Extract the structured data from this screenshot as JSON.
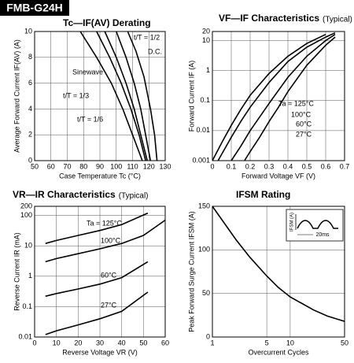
{
  "title": "FMB-G24H",
  "chart_data": [
    {
      "type": "line",
      "title": "Tc—IF(AV) Derating",
      "xlabel": "Case Temperature  Tc (°C)",
      "ylabel": "Average Forward Current  IF(AV) (A)",
      "xlim": [
        50,
        130
      ],
      "xticks": [
        50,
        60,
        70,
        80,
        90,
        100,
        110,
        120,
        130
      ],
      "ylim": [
        0,
        10
      ],
      "yticks": [
        0,
        2,
        4,
        6,
        8,
        10
      ],
      "grid": true,
      "series": [
        {
          "name": "t/T = 1/2",
          "color": "#000000",
          "x": [
            100,
            106,
            111,
            115,
            118,
            121
          ],
          "values": [
            10,
            8,
            6,
            4,
            2,
            0
          ]
        },
        {
          "name": "D.C.",
          "color": "#000000",
          "x": [
            107,
            112,
            117,
            121,
            123.5,
            125
          ],
          "values": [
            10,
            8.5,
            6.5,
            4,
            2,
            0
          ]
        },
        {
          "name": "Sinewave",
          "color": "#000000",
          "x": [
            93,
            100,
            106,
            111,
            115,
            119
          ],
          "values": [
            10,
            8,
            6,
            4,
            2,
            0
          ]
        },
        {
          "name": "t/T = 1/3",
          "color": "#000000",
          "x": [
            88,
            96,
            103,
            109,
            114,
            118
          ],
          "values": [
            10,
            8,
            6,
            4,
            2,
            0
          ]
        },
        {
          "name": "t/T = 1/6",
          "color": "#000000",
          "x": [
            78,
            88,
            97,
            104,
            110,
            116
          ],
          "values": [
            10,
            8,
            6,
            4,
            2,
            0
          ]
        }
      ]
    },
    {
      "type": "line",
      "title": "VF—IF Characteristics",
      "subtitle": "(Typical)",
      "xlabel": "Forward Voltage  VF (V)",
      "ylabel": "Forward Current  IF (A)",
      "xlim": [
        0,
        0.7
      ],
      "xticks": [
        0,
        0.1,
        0.2,
        0.3,
        0.4,
        0.5,
        0.6,
        0.7
      ],
      "ylim": [
        0.001,
        20
      ],
      "yticks": [
        0.001,
        0.01,
        0.1,
        1,
        10,
        20
      ],
      "yscale": "log",
      "grid": true,
      "series": [
        {
          "name": "Ta = 125°C",
          "color": "#000000",
          "x": [
            0,
            0.05,
            0.1,
            0.15,
            0.2,
            0.3,
            0.4,
            0.5,
            0.6
          ],
          "values": [
            0.001,
            0.004,
            0.015,
            0.05,
            0.15,
            0.8,
            3,
            8,
            16
          ]
        },
        {
          "name": "100°C",
          "color": "#000000",
          "x": [
            0.03,
            0.1,
            0.15,
            0.2,
            0.3,
            0.4,
            0.5,
            0.6,
            0.65
          ],
          "values": [
            0.001,
            0.006,
            0.02,
            0.06,
            0.4,
            2,
            6,
            13,
            18
          ]
        },
        {
          "name": "60°C",
          "color": "#000000",
          "x": [
            0.1,
            0.15,
            0.2,
            0.3,
            0.4,
            0.5,
            0.6,
            0.65
          ],
          "values": [
            0.001,
            0.003,
            0.01,
            0.08,
            0.6,
            3,
            10,
            16
          ]
        },
        {
          "name": "27°C",
          "color": "#000000",
          "x": [
            0.17,
            0.2,
            0.25,
            0.3,
            0.35,
            0.4,
            0.5,
            0.6,
            0.65
          ],
          "values": [
            0.001,
            0.002,
            0.006,
            0.02,
            0.06,
            0.2,
            1.5,
            7,
            13
          ]
        }
      ]
    },
    {
      "type": "line",
      "title": "VR—IR Characteristics",
      "subtitle": "(Typical)",
      "xlabel": "Reverse Voltage  VR (V)",
      "ylabel": "Reverse Current  IR (mA)",
      "xlim": [
        0,
        60
      ],
      "xticks": [
        0,
        10,
        20,
        30,
        40,
        50,
        60
      ],
      "ylim": [
        0.01,
        200
      ],
      "yticks": [
        0.01,
        0.1,
        1,
        10,
        100,
        200
      ],
      "yscale": "log",
      "grid": true,
      "series": [
        {
          "name": "Ta = 125°C",
          "color": "#000000",
          "x": [
            5,
            10,
            20,
            30,
            40,
            52
          ],
          "values": [
            12,
            15,
            22,
            32,
            50,
            120
          ]
        },
        {
          "name": "100°C",
          "color": "#000000",
          "x": [
            5,
            10,
            20,
            30,
            40,
            50,
            60
          ],
          "values": [
            3,
            3.8,
            5.5,
            8,
            12,
            22,
            70
          ]
        },
        {
          "name": "60°C",
          "color": "#000000",
          "x": [
            5,
            10,
            20,
            30,
            40,
            52
          ],
          "values": [
            0.22,
            0.27,
            0.38,
            0.55,
            0.9,
            3
          ]
        },
        {
          "name": "27°C",
          "color": "#000000",
          "x": [
            5,
            10,
            20,
            30,
            40,
            52
          ],
          "values": [
            0.012,
            0.016,
            0.025,
            0.04,
            0.07,
            0.3
          ]
        }
      ]
    },
    {
      "type": "line",
      "title": "IFSM  Rating",
      "xlabel": "Overcurrent Cycles",
      "ylabel": "Peak Forward Surge Current  IFSM (A)",
      "xlim": [
        1,
        50
      ],
      "xticks": [
        1,
        5,
        10,
        50
      ],
      "xscale": "log",
      "ylim": [
        0,
        150
      ],
      "yticks": [
        0,
        50,
        100,
        150
      ],
      "grid": true,
      "inset_labels": [
        "IFSM (A)",
        "20ms"
      ],
      "series": [
        {
          "color": "#000000",
          "x": [
            1,
            2,
            3,
            5,
            7,
            10,
            20,
            30,
            50
          ],
          "values": [
            150,
            112,
            92,
            70,
            57,
            46,
            31,
            24,
            18
          ]
        }
      ]
    }
  ]
}
